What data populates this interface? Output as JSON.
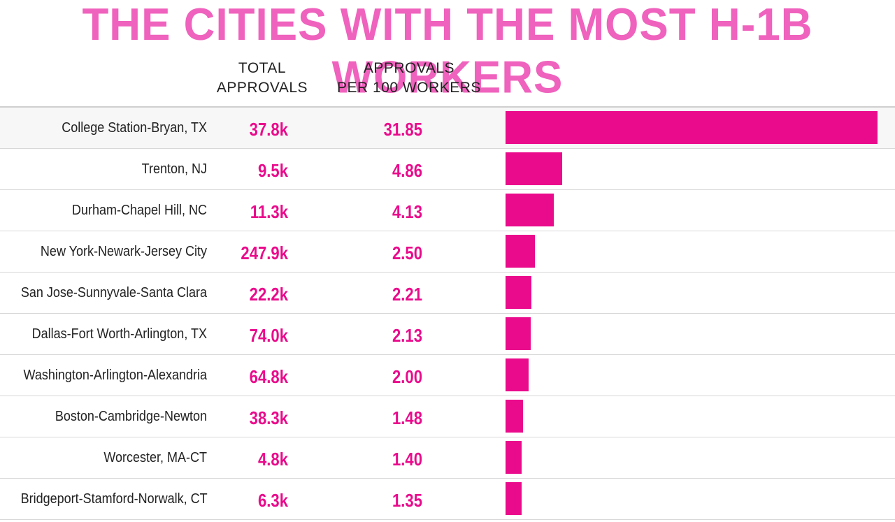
{
  "title": "THE CITIES WITH THE MOST H-1B WORKERS",
  "columns": {
    "total_line1": "TOTAL",
    "total_line2": "APPROVALS",
    "per_line1": "APPROVALS",
    "per_line2": "PER 100 WORKERS"
  },
  "colors": {
    "accent": "#ea0a8c",
    "title": "#ef62bd"
  },
  "chart_data": {
    "type": "bar",
    "orientation": "horizontal",
    "title": "THE CITIES WITH THE MOST H-1B WORKERS",
    "categories": [
      "College Station-Bryan, TX",
      "Trenton, NJ",
      "Durham-Chapel Hill, NC",
      "New York-Newark-Jersey City",
      "San Jose-Sunnyvale-Santa Clara",
      "Dallas-Fort Worth-Arlington, TX",
      "Washington-Arlington-Alexandria",
      "Boston-Cambridge-Newton",
      "Worcester, MA-CT",
      "Bridgeport-Stamford-Norwalk, CT"
    ],
    "total_approvals": [
      "37.8k",
      "9.5k",
      "11.3k",
      "247.9k",
      "22.2k",
      "74.0k",
      "64.8k",
      "38.3k",
      "4.8k",
      "6.3k"
    ],
    "per_100_labels": [
      "31.85",
      "4.86",
      "4.13",
      "2.50",
      "2.21",
      "2.13",
      "2.00",
      "1.48",
      "1.40",
      "1.35"
    ],
    "values": [
      31.85,
      4.86,
      4.13,
      2.5,
      2.21,
      2.13,
      2.0,
      1.48,
      1.4,
      1.35
    ],
    "xlim": [
      0,
      31.85
    ],
    "grid": false
  }
}
